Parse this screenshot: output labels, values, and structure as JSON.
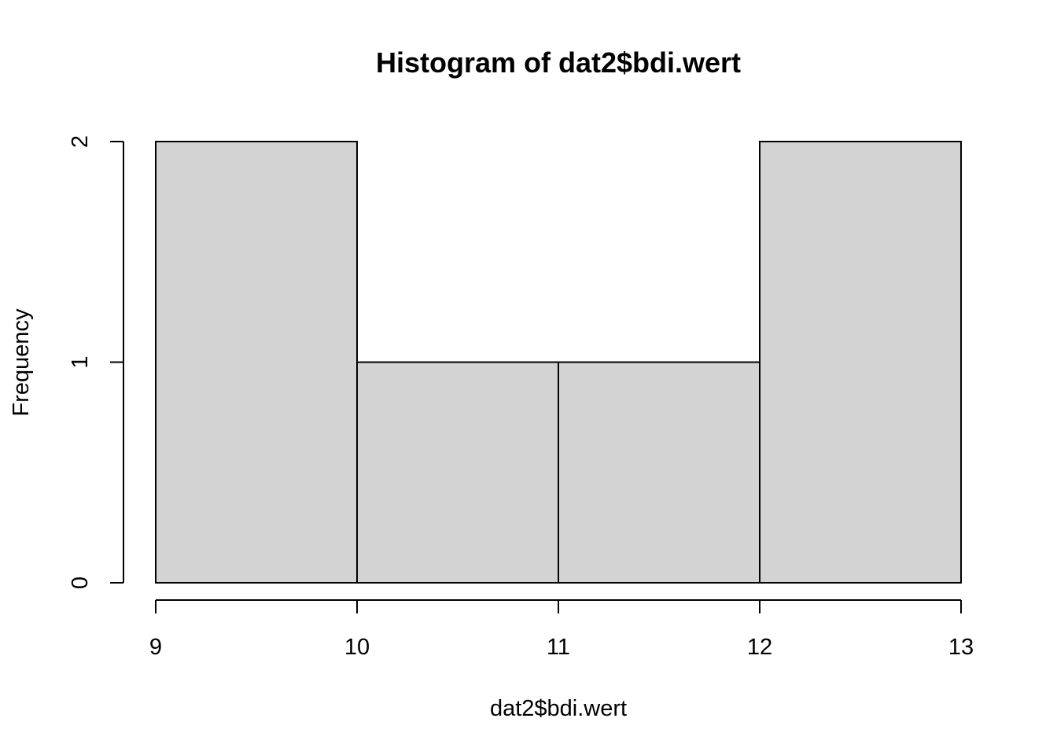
{
  "chart_data": {
    "type": "histogram",
    "title": "Histogram of dat2$bdi.wert",
    "xlabel": "dat2$bdi.wert",
    "ylabel": "Frequency",
    "bins": [
      {
        "start": 9,
        "end": 10,
        "count": 2
      },
      {
        "start": 10,
        "end": 11,
        "count": 1
      },
      {
        "start": 11,
        "end": 12,
        "count": 1
      },
      {
        "start": 12,
        "end": 13,
        "count": 2
      }
    ],
    "xticks": [
      "9",
      "10",
      "11",
      "12",
      "13"
    ],
    "yticks": [
      "0",
      "1",
      "2"
    ],
    "xlim": [
      9,
      13
    ],
    "ylim": [
      0,
      2
    ],
    "grid": false,
    "legend": "none",
    "colors": {
      "bar_fill": "#d3d3d3",
      "bar_stroke": "#000000",
      "axis": "#000000",
      "background": "#ffffff"
    }
  }
}
